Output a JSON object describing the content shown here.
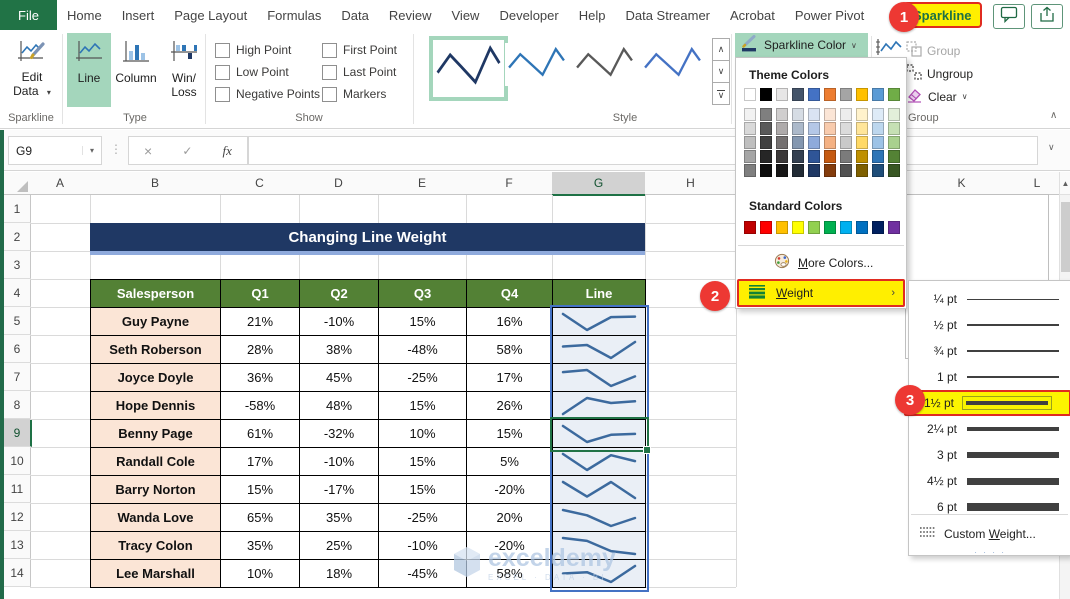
{
  "tab_bar": {
    "file": "File",
    "tabs": [
      "Home",
      "Insert",
      "Page Layout",
      "Formulas",
      "Data",
      "Review",
      "View",
      "Developer",
      "Help",
      "Data Streamer",
      "Acrobat",
      "Power Pivot"
    ],
    "active_tab": "Sparkline"
  },
  "ribbon": {
    "edit_data": [
      "Edit",
      "Data"
    ],
    "type_buttons": [
      {
        "lines": [
          "Line"
        ],
        "selected": true
      },
      {
        "lines": [
          "Column"
        ],
        "selected": false
      },
      {
        "lines": [
          "Win/",
          "Loss"
        ],
        "selected": false
      }
    ],
    "show_options": [
      "High Point",
      "Low Point",
      "Negative Points",
      "First Point",
      "Last Point",
      "Markers"
    ],
    "styles": [
      {
        "color": "#1F3864",
        "selected": true
      },
      {
        "color": "#2E75B6",
        "selected": false
      },
      {
        "color": "#595959",
        "selected": false
      },
      {
        "color": "#4472C4",
        "selected": false
      }
    ],
    "sparkline_color_label": "Sparkline Color",
    "group_buttons": [
      "Group",
      "Ungroup",
      "Clear"
    ],
    "group_labels": {
      "sparkline": "Sparkline",
      "type": "Type",
      "show": "Show",
      "style": "Style",
      "group": "Group"
    }
  },
  "formula_bar": {
    "name_box": "G9"
  },
  "icons": {
    "cancel": "×",
    "enter": "✓",
    "fx": "fx",
    "dots": "⋮",
    "dropdown": "▾",
    "up": "∧",
    "down": "∨",
    "collapse": "∧",
    "expand": "∨",
    "scroll_up": "▲",
    "grip": "∙ ∙ ∙ ∙"
  },
  "sheet": {
    "columns_left": [
      "A",
      "B",
      "C",
      "D",
      "E",
      "F",
      "G",
      "H"
    ],
    "columns_right": [
      "K",
      "L"
    ],
    "rows": [
      "1",
      "2",
      "3",
      "4",
      "5",
      "6",
      "7",
      "8",
      "9",
      "10",
      "11",
      "12",
      "13",
      "14"
    ],
    "active_column": "G",
    "active_row": "9",
    "title": "Changing Line Weight"
  },
  "table": {
    "headers": [
      "Salesperson",
      "Q1",
      "Q2",
      "Q3",
      "Q4",
      "Line"
    ],
    "rows": [
      {
        "name": "Guy Payne",
        "cells": [
          "21%",
          "-10%",
          "15%",
          "16%"
        ],
        "values": [
          21,
          -10,
          15,
          16
        ]
      },
      {
        "name": "Seth Roberson",
        "cells": [
          "28%",
          "38%",
          "-48%",
          "58%"
        ],
        "values": [
          28,
          38,
          -48,
          58
        ]
      },
      {
        "name": "Joyce Doyle",
        "cells": [
          "36%",
          "45%",
          "-25%",
          "17%"
        ],
        "values": [
          36,
          45,
          -25,
          17
        ]
      },
      {
        "name": "Hope Dennis",
        "cells": [
          "-58%",
          "48%",
          "15%",
          "26%"
        ],
        "values": [
          -58,
          48,
          15,
          26
        ]
      },
      {
        "name": "Benny Page",
        "cells": [
          "61%",
          "-32%",
          "10%",
          "15%"
        ],
        "values": [
          61,
          -32,
          10,
          15
        ]
      },
      {
        "name": "Randall Cole",
        "cells": [
          "17%",
          "-10%",
          "15%",
          "5%"
        ],
        "values": [
          17,
          -10,
          15,
          5
        ]
      },
      {
        "name": "Barry Norton",
        "cells": [
          "15%",
          "-17%",
          "15%",
          "-20%"
        ],
        "values": [
          15,
          -17,
          15,
          -20
        ]
      },
      {
        "name": "Wanda Love",
        "cells": [
          "65%",
          "35%",
          "-25%",
          "20%"
        ],
        "values": [
          65,
          35,
          -25,
          20
        ]
      },
      {
        "name": "Tracy Colon",
        "cells": [
          "35%",
          "25%",
          "-10%",
          "-20%"
        ],
        "values": [
          35,
          25,
          -10,
          -20
        ]
      },
      {
        "name": "Lee Marshall",
        "cells": [
          "10%",
          "18%",
          "-45%",
          "58%"
        ],
        "values": [
          10,
          18,
          -45,
          58
        ]
      }
    ]
  },
  "color_menu": {
    "theme_colors_label": "Theme Colors",
    "standard_colors_label": "Standard Colors",
    "more_colors": [
      "",
      "M",
      "ore Colors..."
    ],
    "weight": [
      "",
      "W",
      "eight"
    ],
    "theme_colors": [
      "#FFFFFF",
      "#000000",
      "#E7E6E6",
      "#44546A",
      "#4472C4",
      "#ED7D31",
      "#A5A5A5",
      "#FFC000",
      "#5B9BD5",
      "#70AD47"
    ],
    "theme_variants": [
      [
        "#F2F2F2",
        "#7F7F7F",
        "#D0CECE",
        "#D6DCE4",
        "#DAE3F3",
        "#FBE5D6",
        "#EDEDED",
        "#FFF2CC",
        "#DEEBF7",
        "#E2EFDA"
      ],
      [
        "#D9D9D9",
        "#595959",
        "#AEAAAA",
        "#ACB9CA",
        "#B4C7E7",
        "#F8CBAD",
        "#DBDBDB",
        "#FFE599",
        "#BDD7EE",
        "#C6E0B4"
      ],
      [
        "#BFBFBF",
        "#404040",
        "#757171",
        "#8497B0",
        "#8EAADB",
        "#F4B183",
        "#C9C9C9",
        "#FFD966",
        "#9DC3E6",
        "#A9D18E"
      ],
      [
        "#A6A6A6",
        "#262626",
        "#3B3838",
        "#333F50",
        "#2F5597",
        "#C55A11",
        "#7B7B7B",
        "#BF9000",
        "#2E75B6",
        "#548235"
      ],
      [
        "#7F7F7F",
        "#0D0D0D",
        "#171616",
        "#222B35",
        "#1F3864",
        "#843C0C",
        "#525252",
        "#7F6000",
        "#1F4E79",
        "#385723"
      ]
    ],
    "standard_colors": [
      "#C00000",
      "#FF0000",
      "#FFC000",
      "#FFFF00",
      "#92D050",
      "#00B050",
      "#00B0F0",
      "#0070C0",
      "#002060",
      "#7030A0"
    ]
  },
  "weight_menu": {
    "items": [
      {
        "label": "¼ pt",
        "thickness": 1,
        "highlighted": false
      },
      {
        "label": "½ pt",
        "thickness": 1.5,
        "highlighted": false
      },
      {
        "label": "¾ pt",
        "thickness": 2,
        "highlighted": false
      },
      {
        "label": "1 pt",
        "thickness": 2.5,
        "highlighted": false
      },
      {
        "label": "1½ pt",
        "thickness": 3.5,
        "highlighted": true
      },
      {
        "label": "2¼ pt",
        "thickness": 4.5,
        "highlighted": false
      },
      {
        "label": "3 pt",
        "thickness": 5.5,
        "highlighted": false
      },
      {
        "label": "4½ pt",
        "thickness": 7,
        "highlighted": false
      },
      {
        "label": "6 pt",
        "thickness": 8.5,
        "highlighted": false
      }
    ],
    "custom_weight": [
      "Custom ",
      "W",
      "eight..."
    ]
  },
  "annotations": {
    "step1": "1",
    "step2": "2",
    "step3": "3"
  },
  "watermark": {
    "brand": "exceldemy",
    "tagline": "EXCEL · DATA · BI"
  },
  "colors": {
    "accent_green": "#217346",
    "selection_blue": "#4472C4",
    "sparkline": "#3C6A9E",
    "header_green": "#538135",
    "title_navy": "#1F3864",
    "name_fill": "#FBE5D6",
    "highlight_yellow": "#FFEF00",
    "annotation_red": "#ED3833"
  }
}
